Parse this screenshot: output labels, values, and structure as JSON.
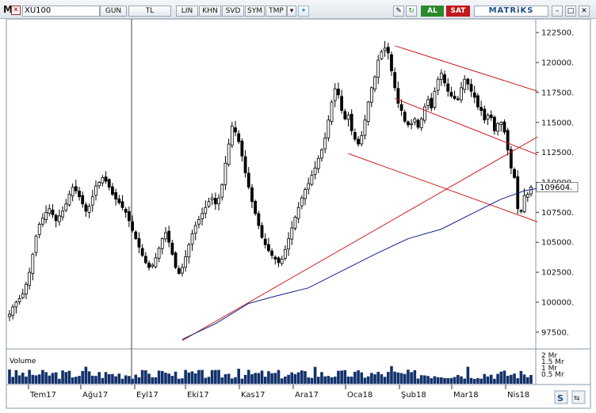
{
  "toolbar": {
    "menu_logo": "M",
    "symbol": "XU100",
    "buttons": [
      "GUN",
      "TL",
      "LIN",
      "KHN",
      "SVD",
      "SYM",
      "TMP"
    ],
    "buy_label": "AL",
    "sell_label": "SAT",
    "brand": "MATRiKS",
    "accent_buy": "#2a8a2a",
    "accent_sell": "#c0181c"
  },
  "chart_data": {
    "type": "candlestick",
    "price_axis_ticks": [
      "122500.",
      "120000.",
      "117500.",
      "115000.",
      "112500.",
      "110000.",
      "107500.",
      "105000.",
      "102500.",
      "100000.",
      "97500."
    ],
    "price_ylim": [
      96300,
      123500
    ],
    "last_price_label": "109604.",
    "x_tick_labels": [
      "Tem17",
      "Ağu17",
      "Eyl17",
      "Eki17",
      "Kas17",
      "Ara17",
      "Oca18",
      "Şub18",
      "Mar18",
      "Nis18"
    ],
    "volume_panel_label": "Volume",
    "volume_ticks": [
      "2 Mr",
      "1.5 Mr",
      "1 Mr",
      "0.5 Mr"
    ],
    "close_series": [
      99000,
      99600,
      100000,
      100300,
      100700,
      101500,
      102500,
      104000,
      105500,
      106500,
      107000,
      107500,
      107800,
      107300,
      106800,
      107200,
      107600,
      108200,
      109000,
      109600,
      109300,
      108800,
      108200,
      107600,
      108000,
      108800,
      109700,
      110000,
      110400,
      110100,
      109600,
      109000,
      108600,
      108300,
      107900,
      107500,
      106800,
      106000,
      105300,
      104600,
      103900,
      103300,
      102900,
      103100,
      103700,
      104500,
      105300,
      105800,
      105000,
      104000,
      102900,
      102400,
      102900,
      103800,
      104800,
      105700,
      106400,
      106900,
      107400,
      107900,
      108400,
      108700,
      108200,
      108700,
      109800,
      111600,
      113200,
      114700,
      114200,
      113400,
      112200,
      110800,
      109600,
      108400,
      107400,
      106400,
      105400,
      104800,
      104300,
      103900,
      103600,
      103300,
      103600,
      104400,
      105300,
      106200,
      107100,
      107900,
      108700,
      109400,
      109900,
      110600,
      111200,
      112000,
      112700,
      113700,
      115200,
      116700,
      117800,
      117300,
      116000,
      115300,
      115600,
      114300,
      113600,
      113200,
      113900,
      115200,
      116700,
      117900,
      118800,
      120200,
      120900,
      121200,
      120800,
      119300,
      117900,
      116600,
      116000,
      115100,
      114800,
      114900,
      115300,
      114600,
      115300,
      116300,
      116900,
      116200,
      117600,
      118600,
      119100,
      118300,
      117600,
      117200,
      117000,
      116900,
      117900,
      118600,
      118200,
      117600,
      117100,
      116300,
      116000,
      115200,
      115600,
      115400,
      114300,
      114900,
      115000,
      114200,
      112700,
      111200,
      110400,
      107800,
      107600,
      108900,
      109000,
      109600
    ],
    "sma_points_desc": "long-term moving average rising from lower left",
    "trendline_color": "#cc2020",
    "sma_color": "#10208a",
    "candle_color": "#000000",
    "volume_color": "#12316b",
    "grid": false
  }
}
